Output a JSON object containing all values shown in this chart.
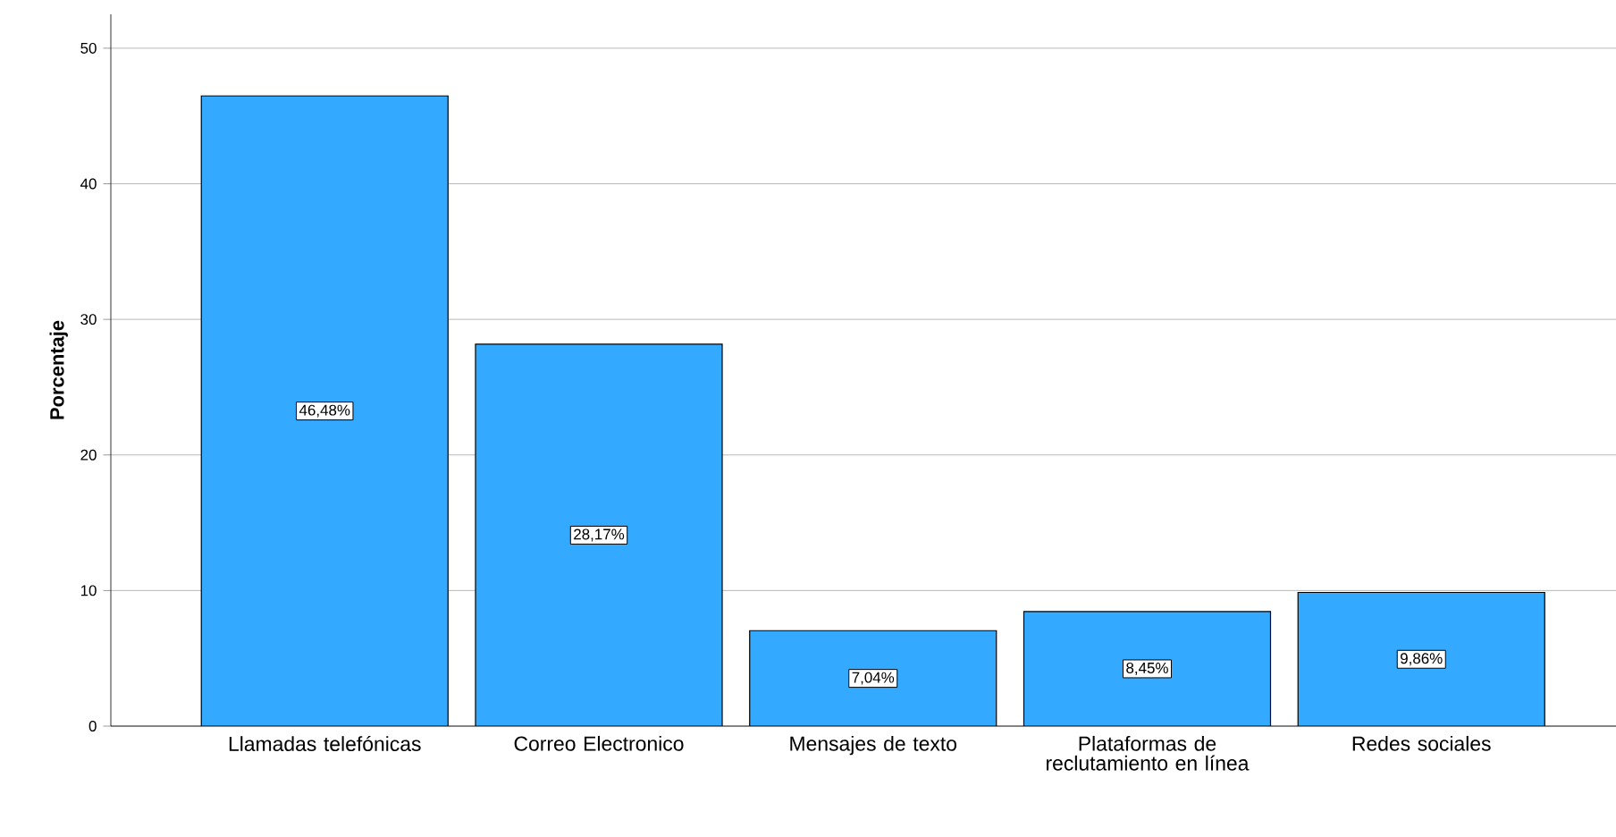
{
  "chart_data": {
    "type": "bar",
    "ylabel": "Porcentaje",
    "categories": [
      "Llamadas telefónicas",
      "Correo Electronico",
      "Mensajes de texto",
      "Plataformas de reclutamiento en línea",
      "Redes sociales"
    ],
    "values": [
      46.48,
      28.17,
      7.04,
      8.45,
      9.86
    ],
    "value_labels": [
      "46,48%",
      "28,17%",
      "7,04%",
      "8,45%",
      "9,86%"
    ],
    "color": "#33aaff",
    "ylim": [
      0,
      52.5
    ],
    "yticks": [
      0,
      10,
      20,
      30,
      40,
      50
    ],
    "grid": "y"
  }
}
